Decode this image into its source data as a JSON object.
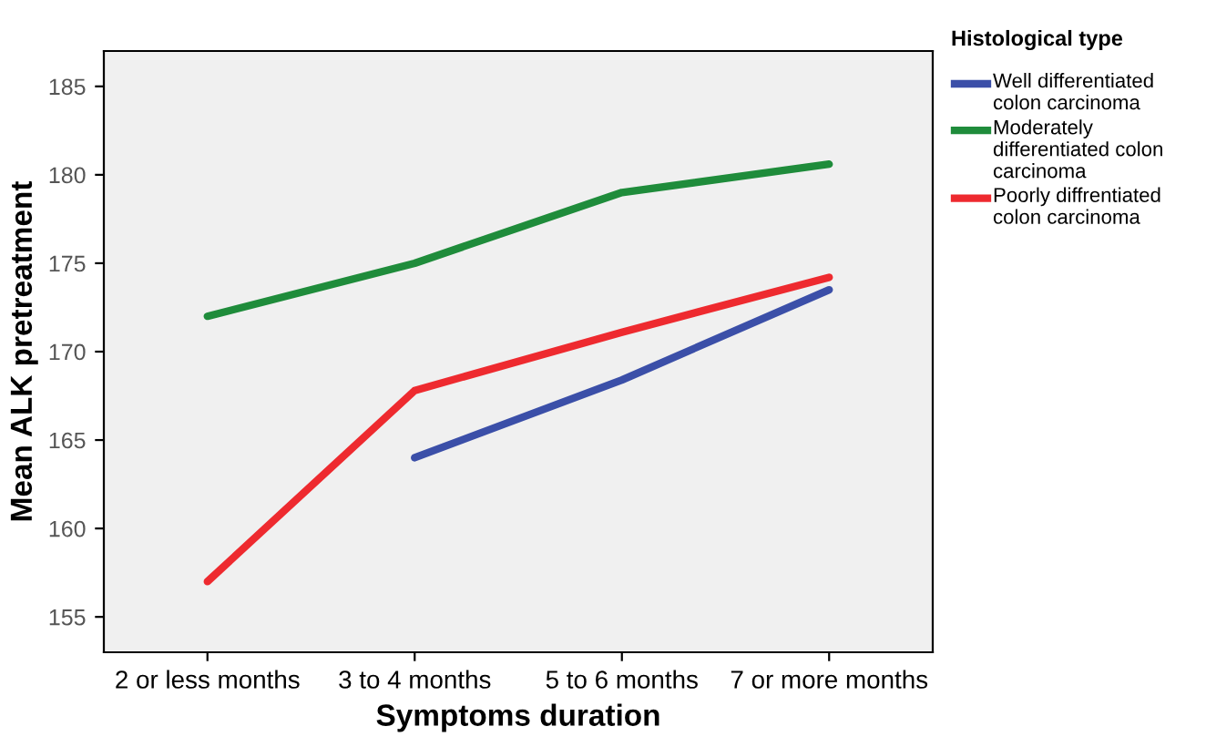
{
  "chart_data": {
    "type": "line",
    "xlabel": "Symptoms duration",
    "ylabel": "Mean ALK pretreatment",
    "legend_title": "Histological type",
    "legend": "right",
    "categories": [
      "2 or less months",
      "3 to 4 months",
      "5 to 6 months",
      "7 or more months"
    ],
    "series": [
      {
        "name": "Well differentiated colon carcinoma",
        "color": "#3b4fa8",
        "values": [
          null,
          164.0,
          168.4,
          173.5
        ]
      },
      {
        "name": "Moderately differentiated colon carcinoma",
        "color": "#1f8c3b",
        "values": [
          172.0,
          175.0,
          179.0,
          180.6
        ]
      },
      {
        "name": "Poorly diffrentiated colon carcinoma",
        "color": "#ee2a2f",
        "values": [
          157.0,
          167.8,
          171.1,
          174.2
        ]
      }
    ],
    "ylim": [
      153,
      187
    ],
    "yticks": [
      155,
      160,
      165,
      170,
      175,
      180,
      185
    ],
    "grid": false,
    "marker": "none",
    "line_style": "solid"
  }
}
